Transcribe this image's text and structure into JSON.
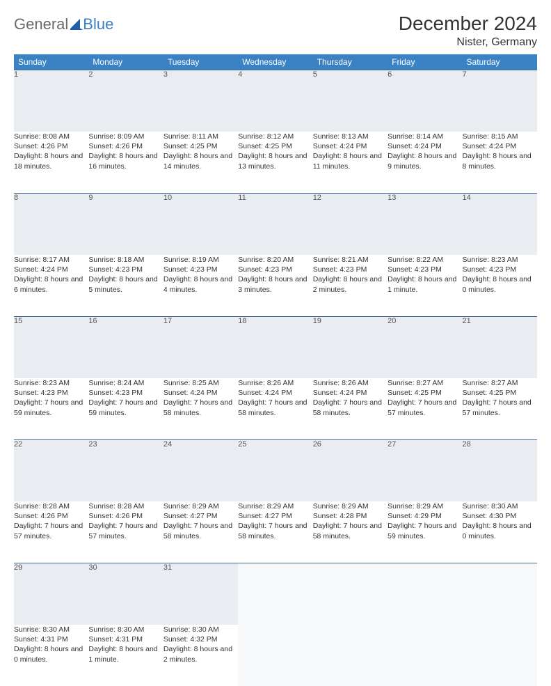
{
  "logo": {
    "text1": "General",
    "text2": "Blue"
  },
  "title": "December 2024",
  "location": "Nister, Germany",
  "colors": {
    "header_bg": "#3b82c4",
    "header_text": "#ffffff",
    "daynum_bg": "#e9edf1",
    "row_border": "#3b6a9a",
    "logo_gray": "#6b6b6b",
    "logo_blue": "#3b7fc4"
  },
  "weekdays": [
    "Sunday",
    "Monday",
    "Tuesday",
    "Wednesday",
    "Thursday",
    "Friday",
    "Saturday"
  ],
  "weeks": [
    [
      {
        "n": "1",
        "sr": "8:08 AM",
        "ss": "4:26 PM",
        "dl": "8 hours and 18 minutes."
      },
      {
        "n": "2",
        "sr": "8:09 AM",
        "ss": "4:26 PM",
        "dl": "8 hours and 16 minutes."
      },
      {
        "n": "3",
        "sr": "8:11 AM",
        "ss": "4:25 PM",
        "dl": "8 hours and 14 minutes."
      },
      {
        "n": "4",
        "sr": "8:12 AM",
        "ss": "4:25 PM",
        "dl": "8 hours and 13 minutes."
      },
      {
        "n": "5",
        "sr": "8:13 AM",
        "ss": "4:24 PM",
        "dl": "8 hours and 11 minutes."
      },
      {
        "n": "6",
        "sr": "8:14 AM",
        "ss": "4:24 PM",
        "dl": "8 hours and 9 minutes."
      },
      {
        "n": "7",
        "sr": "8:15 AM",
        "ss": "4:24 PM",
        "dl": "8 hours and 8 minutes."
      }
    ],
    [
      {
        "n": "8",
        "sr": "8:17 AM",
        "ss": "4:24 PM",
        "dl": "8 hours and 6 minutes."
      },
      {
        "n": "9",
        "sr": "8:18 AM",
        "ss": "4:23 PM",
        "dl": "8 hours and 5 minutes."
      },
      {
        "n": "10",
        "sr": "8:19 AM",
        "ss": "4:23 PM",
        "dl": "8 hours and 4 minutes."
      },
      {
        "n": "11",
        "sr": "8:20 AM",
        "ss": "4:23 PM",
        "dl": "8 hours and 3 minutes."
      },
      {
        "n": "12",
        "sr": "8:21 AM",
        "ss": "4:23 PM",
        "dl": "8 hours and 2 minutes."
      },
      {
        "n": "13",
        "sr": "8:22 AM",
        "ss": "4:23 PM",
        "dl": "8 hours and 1 minute."
      },
      {
        "n": "14",
        "sr": "8:23 AM",
        "ss": "4:23 PM",
        "dl": "8 hours and 0 minutes."
      }
    ],
    [
      {
        "n": "15",
        "sr": "8:23 AM",
        "ss": "4:23 PM",
        "dl": "7 hours and 59 minutes."
      },
      {
        "n": "16",
        "sr": "8:24 AM",
        "ss": "4:23 PM",
        "dl": "7 hours and 59 minutes."
      },
      {
        "n": "17",
        "sr": "8:25 AM",
        "ss": "4:24 PM",
        "dl": "7 hours and 58 minutes."
      },
      {
        "n": "18",
        "sr": "8:26 AM",
        "ss": "4:24 PM",
        "dl": "7 hours and 58 minutes."
      },
      {
        "n": "19",
        "sr": "8:26 AM",
        "ss": "4:24 PM",
        "dl": "7 hours and 58 minutes."
      },
      {
        "n": "20",
        "sr": "8:27 AM",
        "ss": "4:25 PM",
        "dl": "7 hours and 57 minutes."
      },
      {
        "n": "21",
        "sr": "8:27 AM",
        "ss": "4:25 PM",
        "dl": "7 hours and 57 minutes."
      }
    ],
    [
      {
        "n": "22",
        "sr": "8:28 AM",
        "ss": "4:26 PM",
        "dl": "7 hours and 57 minutes."
      },
      {
        "n": "23",
        "sr": "8:28 AM",
        "ss": "4:26 PM",
        "dl": "7 hours and 57 minutes."
      },
      {
        "n": "24",
        "sr": "8:29 AM",
        "ss": "4:27 PM",
        "dl": "7 hours and 58 minutes."
      },
      {
        "n": "25",
        "sr": "8:29 AM",
        "ss": "4:27 PM",
        "dl": "7 hours and 58 minutes."
      },
      {
        "n": "26",
        "sr": "8:29 AM",
        "ss": "4:28 PM",
        "dl": "7 hours and 58 minutes."
      },
      {
        "n": "27",
        "sr": "8:29 AM",
        "ss": "4:29 PM",
        "dl": "7 hours and 59 minutes."
      },
      {
        "n": "28",
        "sr": "8:30 AM",
        "ss": "4:30 PM",
        "dl": "8 hours and 0 minutes."
      }
    ],
    [
      {
        "n": "29",
        "sr": "8:30 AM",
        "ss": "4:31 PM",
        "dl": "8 hours and 0 minutes."
      },
      {
        "n": "30",
        "sr": "8:30 AM",
        "ss": "4:31 PM",
        "dl": "8 hours and 1 minute."
      },
      {
        "n": "31",
        "sr": "8:30 AM",
        "ss": "4:32 PM",
        "dl": "8 hours and 2 minutes."
      },
      null,
      null,
      null,
      null
    ]
  ],
  "labels": {
    "sunrise": "Sunrise: ",
    "sunset": "Sunset: ",
    "daylight": "Daylight: "
  }
}
